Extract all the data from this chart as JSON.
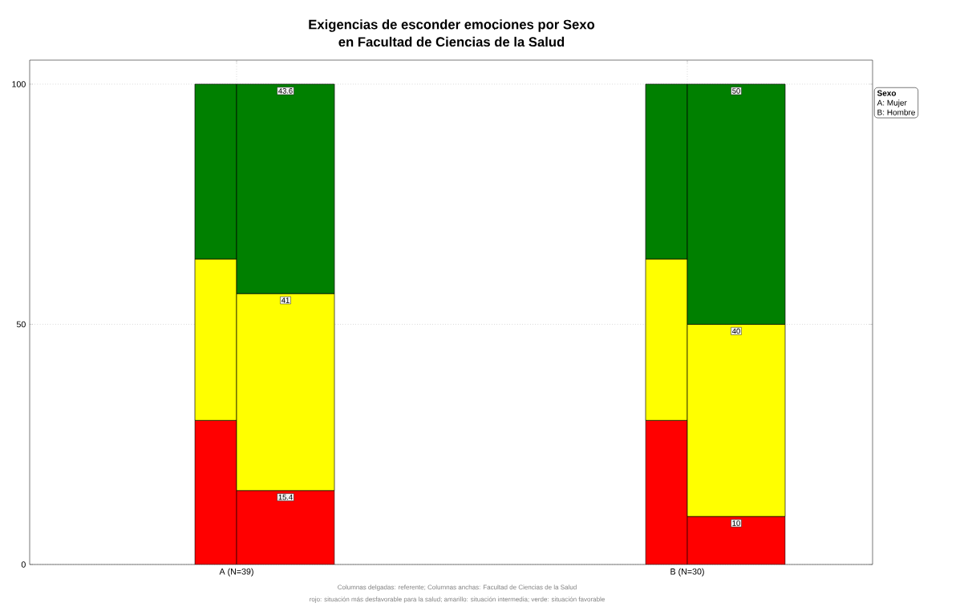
{
  "chart_data": {
    "type": "bar",
    "title": "Exigencias de esconder emociones por Sexo",
    "subtitle": "en Facultad de Ciencias de la Salud",
    "legend_title": "Sexo",
    "categories": [
      "A (N=39)",
      "B (N=30)"
    ],
    "series": [
      {
        "color": "#ff0000",
        "values": [
          30,
          30
        ],
        "base": [
          0,
          0
        ]
      },
      {
        "color": "#ffff00",
        "values": [
          33.6,
          33.6
        ],
        "base": [
          30,
          30
        ]
      },
      {
        "color": "#008000",
        "values": [
          36.4,
          36.4
        ],
        "base": [
          63.6,
          63.6
        ]
      },
      {
        "color": "#ff0000",
        "values": [
          15.4,
          10
        ],
        "base": [
          0,
          0
        ],
        "value_labels": [
          "15.4",
          "10"
        ]
      },
      {
        "color": "#ffff00",
        "values": [
          41,
          40
        ],
        "base": [
          15.4,
          10
        ],
        "value_labels": [
          "41",
          "40"
        ]
      },
      {
        "color": "#008000",
        "values": [
          43.6,
          50
        ],
        "base": [
          56.4,
          50
        ],
        "value_labels": [
          "43.6",
          "50"
        ]
      }
    ],
    "ylim": [
      0,
      105
    ],
    "yticks": [
      0,
      50,
      100
    ],
    "grid": true,
    "annotations": [
      "A: Mujer",
      "B: Hombre",
      "Columnas delgadas: referente; Columnas anchas: Facultad de Ciencias de la Salud",
      "rojo: situación más desfavorable para la salud; amarillo: situación intermedia; verde: situación favorable"
    ]
  }
}
